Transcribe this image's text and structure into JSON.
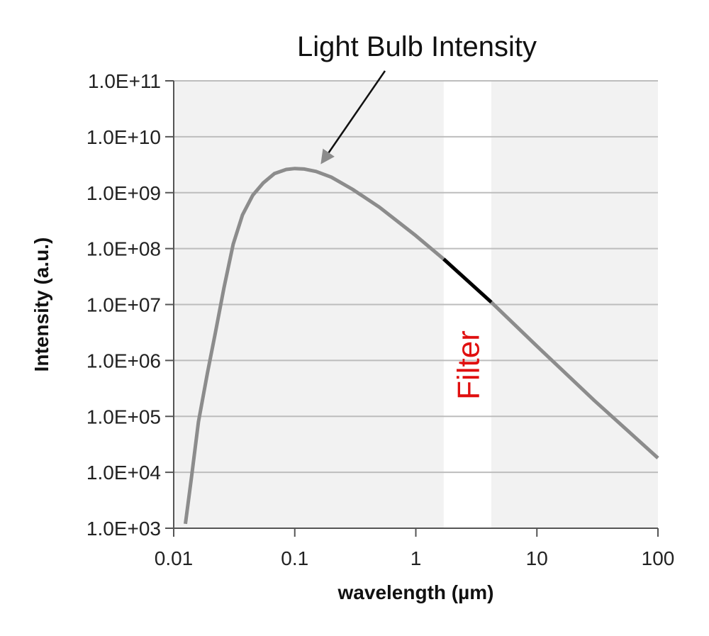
{
  "chart_data": {
    "type": "line",
    "title": "",
    "xlabel": "wavelength (µm)",
    "ylabel": "Intensity (a.u.)",
    "x_scale": "log",
    "y_scale": "log",
    "xlim": [
      0.01,
      100
    ],
    "ylim": [
      1000,
      100000000000
    ],
    "x_ticks": [
      0.01,
      0.1,
      1,
      10,
      100
    ],
    "x_tick_labels": [
      "0.01",
      "0.1",
      "1",
      "10",
      "100"
    ],
    "y_ticks": [
      1000,
      10000,
      100000,
      1000000,
      10000000,
      100000000,
      1000000000,
      10000000000,
      100000000000
    ],
    "y_tick_labels": [
      "1.0E+03",
      "1.0E+04",
      "1.0E+05",
      "1.0E+06",
      "1.0E+07",
      "1.0E+08",
      "1.0E+09",
      "1.0E+10",
      "1.0E+11"
    ],
    "grid": true,
    "series": [
      {
        "color": "#8c8c8c",
        "x": [
          0.0125,
          0.014,
          0.016,
          0.019,
          0.022,
          0.026,
          0.031,
          0.037,
          0.045,
          0.055,
          0.068,
          0.085,
          0.1,
          0.12,
          0.15,
          0.2,
          0.3,
          0.5,
          1,
          1.7,
          4.2,
          10,
          30,
          100
        ],
        "y": [
          1200,
          8000,
          80000,
          600000,
          3000000,
          20000000,
          120000000,
          400000000,
          900000000,
          1500000000,
          2200000000,
          2600000000,
          2700000000,
          2650000000,
          2400000000,
          1900000000,
          1150000000,
          550000000,
          170000000,
          65000000,
          11000000,
          1800000,
          190000,
          18000
        ]
      }
    ],
    "highlight_band": {
      "x_range": [
        1.7,
        4.2
      ],
      "label": "Filter",
      "label_color": "#e01010",
      "band_color": "#ffffff",
      "segment_color": "#000000"
    },
    "annotation": {
      "text": "Light Bulb Intensity",
      "arrow_to": {
        "x": 0.16,
        "y": 2500000000
      }
    },
    "plot_background": "#f2f2f2",
    "grid_color": "#bdbdbd"
  }
}
